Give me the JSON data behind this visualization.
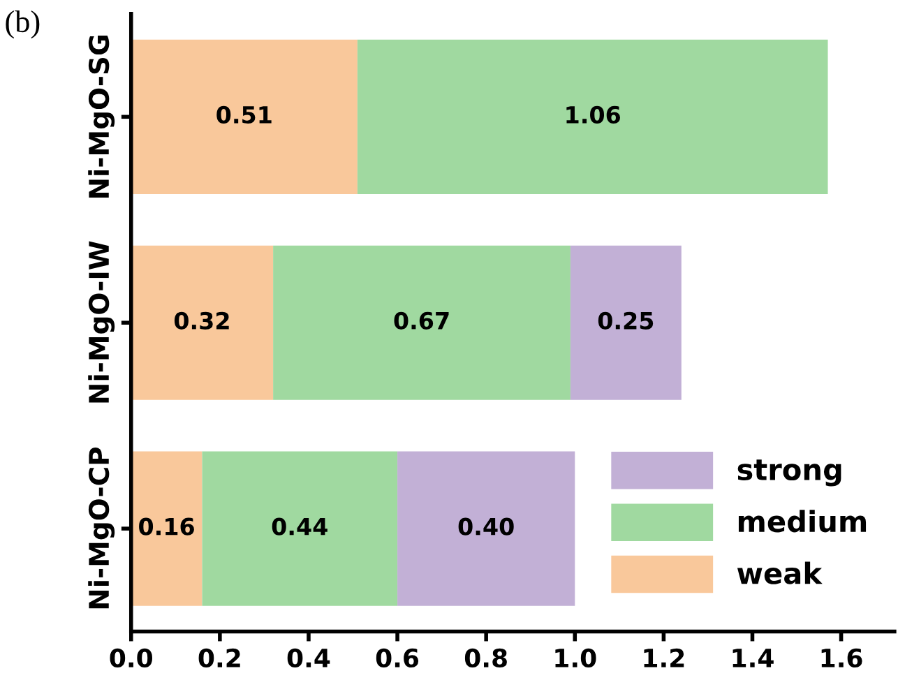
{
  "chart_data": {
    "type": "bar",
    "orientation": "horizontal",
    "stacked": true,
    "categories": [
      "Ni-MgO-SG",
      "Ni-MgO-IW",
      "Ni-MgO-CP"
    ],
    "series": [
      {
        "name": "weak",
        "color": "#f9c89b",
        "values": [
          0.51,
          0.32,
          0.16
        ],
        "value_labels": [
          "0.51",
          "0.32",
          "0.16"
        ]
      },
      {
        "name": "medium",
        "color": "#a0d9a0",
        "values": [
          1.06,
          0.67,
          0.44
        ],
        "value_labels": [
          "1.06",
          "0.67",
          "0.44"
        ]
      },
      {
        "name": "strong",
        "color": "#c2b0d6",
        "values": [
          null,
          0.25,
          0.4
        ],
        "value_labels": [
          null,
          "0.25",
          "0.40"
        ]
      }
    ],
    "xlim": [
      0,
      1.72
    ],
    "xticks": [
      {
        "value": 0,
        "label": "0.0"
      },
      0.2,
      0.4,
      0.6,
      0.8,
      {
        "value": 1,
        "label": "1.0"
      },
      1.2,
      1.4,
      1.6
    ],
    "annotations": [
      "(b)"
    ],
    "legend": "bottom right",
    "grid": false
  }
}
